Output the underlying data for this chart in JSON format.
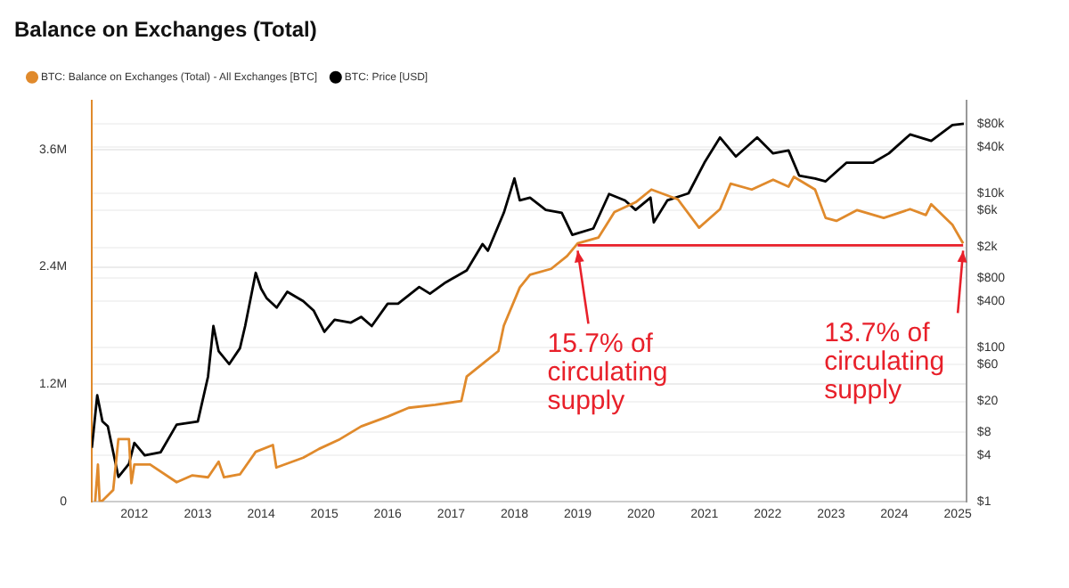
{
  "chart_data": {
    "type": "line",
    "title": "Balance on Exchanges (Total)",
    "legend": "top left",
    "grid": "y",
    "marker": "none",
    "line_style": "solid",
    "log": "y2",
    "xlim": [
      "2011-05",
      "2025-02-20"
    ],
    "xticks": [
      "2012",
      "2013",
      "2014",
      "2015",
      "2016",
      "2017",
      "2018",
      "2019",
      "2020",
      "2021",
      "2022",
      "2023",
      "2024",
      "2025"
    ],
    "ylim": [
      0,
      4100000
    ],
    "yticks": [
      0,
      {
        "value": 1200000,
        "label": "1.2M"
      },
      {
        "value": 2400000,
        "label": "2.4M"
      },
      {
        "value": 3600000,
        "label": "3.6M"
      }
    ],
    "y2lim": [
      1,
      160000
    ],
    "y2ticks": [
      {
        "value": 1,
        "label": "$1"
      },
      {
        "value": 4,
        "label": "$4"
      },
      {
        "value": 8,
        "label": "$8"
      },
      {
        "value": 20,
        "label": "$20"
      },
      {
        "value": 60,
        "label": "$60"
      },
      {
        "value": 100,
        "label": "$100"
      },
      {
        "value": 400,
        "label": "$400"
      },
      {
        "value": 800,
        "label": "$800"
      },
      {
        "value": 2000,
        "label": "$2k"
      },
      {
        "value": 6000,
        "label": "$6k"
      },
      {
        "value": 10000,
        "label": "$10k"
      },
      {
        "value": 40000,
        "label": "$40k"
      },
      {
        "value": 80000,
        "label": "$80k"
      }
    ],
    "series": [
      {
        "name": "BTC: Balance on Exchanges (Total) - All Exchanges [BTC]",
        "color": "#e08a2c",
        "x": [
          "2011-05-20",
          "2011-06-05",
          "2011-06-15",
          "2011-07",
          "2011-09",
          "2011-10",
          "2011-12-01",
          "2011-12-15",
          "2012-01",
          "2012-04",
          "2012-09",
          "2012-12",
          "2013-03",
          "2013-05",
          "2013-06",
          "2013-09",
          "2013-12",
          "2014-03-10",
          "2014-03-30",
          "2014-09",
          "2014-12",
          "2015-04",
          "2015-08",
          "2016-01",
          "2016-05",
          "2016-10",
          "2017-03",
          "2017-04",
          "2017-07",
          "2017-10",
          "2017-11",
          "2018-02",
          "2018-04",
          "2018-08",
          "2018-11",
          "2019-01",
          "2019-05",
          "2019-08",
          "2019-12",
          "2020-03",
          "2020-08",
          "2020-12",
          "2021-04",
          "2021-06",
          "2021-10",
          "2022-02",
          "2022-05",
          "2022-06",
          "2022-10",
          "2022-12",
          "2023-02",
          "2023-06",
          "2023-11",
          "2024-04",
          "2024-07",
          "2024-08",
          "2024-12",
          "2025-02"
        ],
        "values": [
          0,
          380000,
          0,
          10000,
          120000,
          640000,
          640000,
          190000,
          380000,
          380000,
          200000,
          270000,
          250000,
          410000,
          250000,
          280000,
          510000,
          580000,
          350000,
          450000,
          540000,
          640000,
          770000,
          870000,
          960000,
          990000,
          1030000,
          1280000,
          1410000,
          1540000,
          1800000,
          2190000,
          2320000,
          2380000,
          2510000,
          2640000,
          2700000,
          2960000,
          3060000,
          3190000,
          3090000,
          2800000,
          2990000,
          3250000,
          3190000,
          3290000,
          3220000,
          3320000,
          3190000,
          2900000,
          2870000,
          2980000,
          2900000,
          2990000,
          2930000,
          3040000,
          2830000,
          2640000
        ]
      },
      {
        "name": "BTC: Price [USD]",
        "color": "#000000",
        "axis": "y2",
        "x": [
          "2011-05",
          "2011-06",
          "2011-07",
          "2011-08",
          "2011-10",
          "2011-12",
          "2012-01",
          "2012-03",
          "2012-06",
          "2012-09",
          "2013-01",
          "2013-03",
          "2013-04",
          "2013-05",
          "2013-07",
          "2013-09",
          "2013-10",
          "2013-12",
          "2014-01",
          "2014-02",
          "2014-04",
          "2014-06",
          "2014-09",
          "2014-11",
          "2015-01",
          "2015-03",
          "2015-06",
          "2015-08",
          "2015-10",
          "2016-01",
          "2016-03",
          "2016-07",
          "2016-09",
          "2016-12",
          "2017-04",
          "2017-07",
          "2017-08",
          "2017-11",
          "2018-01",
          "2018-02",
          "2018-04",
          "2018-07",
          "2018-10",
          "2018-12",
          "2019-04",
          "2019-07",
          "2019-10",
          "2019-12",
          "2020-02-25",
          "2020-03-15",
          "2020-06",
          "2020-10",
          "2021-01",
          "2021-04",
          "2021-07",
          "2021-11",
          "2022-02",
          "2022-05",
          "2022-07",
          "2022-10",
          "2022-12",
          "2023-04",
          "2023-09",
          "2023-12",
          "2024-04",
          "2024-08",
          "2024-12",
          "2025-02-05"
        ],
        "values": [
          5,
          24,
          11,
          9.5,
          2.1,
          3.1,
          5.8,
          4,
          4.4,
          10,
          11,
          42,
          190,
          90,
          61,
          98,
          190,
          930,
          580,
          440,
          330,
          530,
          400,
          300,
          160,
          230,
          210,
          250,
          190,
          370,
          370,
          610,
          500,
          700,
          1000,
          2200,
          1800,
          5600,
          15600,
          8100,
          8800,
          6100,
          5600,
          2900,
          3500,
          9800,
          8100,
          6100,
          8800,
          4200,
          8100,
          10000,
          25000,
          53000,
          30000,
          53000,
          33000,
          36000,
          17000,
          15600,
          14300,
          25000,
          25000,
          33000,
          58000,
          48000,
          77000,
          80000
        ]
      },
      {
        "type": "line",
        "color": "#e8202a",
        "x": [
          "2019-01",
          "2025-02"
        ],
        "values": [
          2620000,
          2620000
        ]
      }
    ],
    "annotations": [
      {
        "text": "15.7% of circulating supply",
        "x": "2019-01",
        "y": 2620000
      },
      {
        "text": "13.7% of circulating supply",
        "x": "2025-02",
        "y": 2620000
      }
    ]
  }
}
